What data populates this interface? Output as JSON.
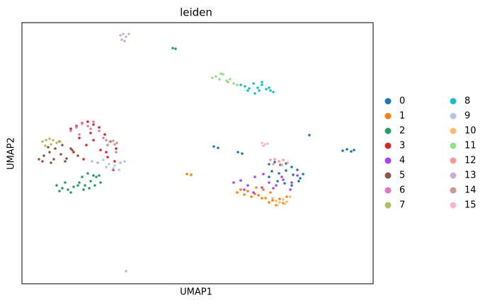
{
  "chart_data": {
    "type": "scatter",
    "title": "leiden",
    "xlabel": "UMAP1",
    "ylabel": "UMAP2",
    "xlim": [
      31,
      527
    ],
    "ylim": [
      401,
      32
    ],
    "series": [
      {
        "name": "0",
        "color": "#1f77b4",
        "x": [
          380,
          388,
          396,
          404,
          412,
          420,
          428,
          384,
          394,
          404,
          414,
          424,
          380,
          392,
          402,
          412,
          422,
          484,
          490,
          496,
          500,
          437,
          336,
          342,
          302,
          308
        ],
        "y": [
          232,
          229,
          233,
          231,
          236,
          240,
          246,
          242,
          245,
          241,
          247,
          252,
          250,
          256,
          259,
          262,
          256,
          213,
          211,
          214,
          212,
          191,
          215,
          217,
          207,
          209
        ]
      },
      {
        "name": "1",
        "color": "#ff7f0e",
        "x": [
          335,
          345,
          355,
          365,
          375,
          385,
          395,
          405,
          340,
          350,
          360,
          370,
          380,
          390,
          400,
          362,
          372,
          382,
          264,
          270
        ],
        "y": [
          272,
          275,
          278,
          276,
          280,
          283,
          281,
          278,
          268,
          270,
          274,
          280,
          286,
          290,
          287,
          265,
          268,
          272,
          246,
          247
        ]
      },
      {
        "name": "2",
        "color": "#279e68",
        "x": [
          80,
          88,
          96,
          104,
          112,
          120,
          128,
          136,
          142,
          84,
          92,
          100,
          110,
          118,
          126,
          134,
          140,
          116,
          124,
          132,
          244,
          248
        ],
        "y": [
          262,
          266,
          268,
          264,
          258,
          262,
          256,
          250,
          258,
          270,
          258,
          272,
          262,
          268,
          266,
          262,
          248,
          250,
          245,
          248,
          68,
          69
        ]
      },
      {
        "name": "3",
        "color": "#d62728",
        "x": [
          100,
          108,
          116,
          124,
          132,
          140,
          148,
          156,
          164,
          112,
          122,
          132,
          142,
          152,
          162,
          104,
          118,
          128,
          138,
          150,
          160,
          170
        ],
        "y": [
          182,
          178,
          174,
          172,
          176,
          180,
          190,
          200,
          210,
          195,
          205,
          198,
          212,
          222,
          228,
          215,
          225,
          188,
          230,
          215,
          240,
          230
        ]
      },
      {
        "name": "4",
        "color": "#aa40fc",
        "x": [
          330,
          340,
          350,
          360,
          370,
          380,
          390,
          400,
          410,
          345,
          358,
          372,
          386,
          398,
          412,
          420
        ],
        "y": [
          258,
          255,
          262,
          250,
          265,
          258,
          262,
          254,
          268,
          268,
          272,
          246,
          266,
          250,
          258,
          248
        ]
      },
      {
        "name": "5",
        "color": "#8c564b",
        "x": [
          55,
          62,
          70,
          78,
          86,
          94,
          102,
          110,
          60,
          68,
          76,
          84,
          92,
          100,
          72,
          88
        ],
        "y": [
          225,
          220,
          215,
          210,
          218,
          224,
          212,
          220,
          228,
          208,
          225,
          200,
          228,
          210,
          230,
          205
        ]
      },
      {
        "name": "6",
        "color": "#e377c2",
        "x": [
          100,
          108,
          116,
          124,
          132,
          140,
          112,
          128,
          146,
          152,
          164
        ],
        "y": [
          185,
          180,
          175,
          178,
          172,
          185,
          190,
          182,
          195,
          205,
          215
        ]
      },
      {
        "name": "7",
        "color": "#b5bd61",
        "x": [
          60,
          65,
          70,
          75,
          80,
          85,
          64,
          72
        ],
        "y": [
          200,
          198,
          196,
          198,
          202,
          200,
          206,
          204
        ]
      },
      {
        "name": "8",
        "color": "#17becf",
        "x": [
          340,
          346,
          352,
          358,
          364,
          370,
          376,
          382,
          386,
          350,
          360,
          370,
          380,
          366
        ],
        "y": [
          120,
          122,
          125,
          118,
          124,
          120,
          126,
          128,
          130,
          128,
          132,
          116,
          124,
          128
        ]
      },
      {
        "name": "9",
        "color": "#aec7e8",
        "x": [
          130,
          138,
          146,
          154,
          162,
          170,
          176,
          150,
          160,
          168
        ],
        "y": [
          228,
          230,
          226,
          232,
          234,
          230,
          228,
          236,
          238,
          240
        ]
      },
      {
        "name": "10",
        "color": "#ffbb78",
        "x": [
          385,
          390,
          395,
          400,
          405,
          410,
          392,
          402
        ],
        "y": [
          280,
          284,
          286,
          282,
          285,
          278,
          290,
          288
        ]
      },
      {
        "name": "11",
        "color": "#98df8a",
        "x": [
          300,
          305,
          310,
          315,
          320,
          325,
          330,
          335,
          312,
          322
        ],
        "y": [
          110,
          108,
          112,
          105,
          114,
          112,
          118,
          120,
          104,
          116
        ]
      },
      {
        "name": "12",
        "color": "#ff9896",
        "x": [
          382,
          388,
          394,
          400,
          406,
          386,
          398
        ],
        "y": [
          226,
          225,
          228,
          226,
          230,
          232,
          233
        ]
      },
      {
        "name": "13",
        "color": "#c5b0d5",
        "x": [
          170,
          174,
          178,
          182,
          172,
          176,
          178
        ],
        "y": [
          50,
          48,
          52,
          48,
          56,
          58,
          383
        ]
      },
      {
        "name": "14",
        "color": "#c49c94",
        "x": [
          150,
          155,
          160,
          165,
          152,
          162
        ],
        "y": [
          198,
          200,
          199,
          202,
          205,
          204
        ]
      },
      {
        "name": "15",
        "color": "#f7b6d2",
        "x": [
          370,
          374,
          378,
          372
        ],
        "y": [
          202,
          204,
          203,
          206
        ]
      }
    ]
  }
}
